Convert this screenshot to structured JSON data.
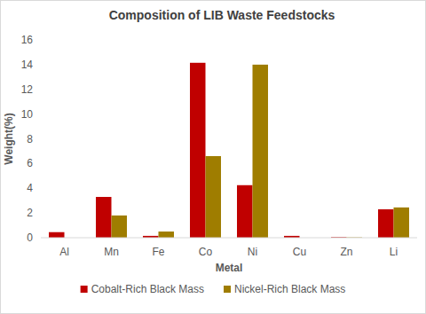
{
  "chart_data": {
    "type": "bar",
    "title": "Composition of LIB Waste Feedstocks",
    "x_label": "Metal",
    "y_label": "Weight(%)",
    "categories": [
      "Al",
      "Mn",
      "Fe",
      "Co",
      "Ni",
      "Cu",
      "Zn",
      "Li"
    ],
    "series": [
      {
        "name": "Cobalt-Rich Black Mass",
        "color": "#c00000",
        "values": [
          0.45,
          3.3,
          0.15,
          14.15,
          4.25,
          0.15,
          0.05,
          2.3
        ]
      },
      {
        "name": "Nickel-Rich Black Mass",
        "color": "#9f7d00",
        "values": [
          0,
          1.8,
          0.5,
          6.6,
          14.0,
          0,
          0.03,
          2.45
        ]
      }
    ],
    "ylim": [
      0,
      16
    ],
    "yticks": [
      0,
      2,
      4,
      6,
      8,
      10,
      12,
      14,
      16
    ],
    "grid": false,
    "legend": "bottom"
  }
}
